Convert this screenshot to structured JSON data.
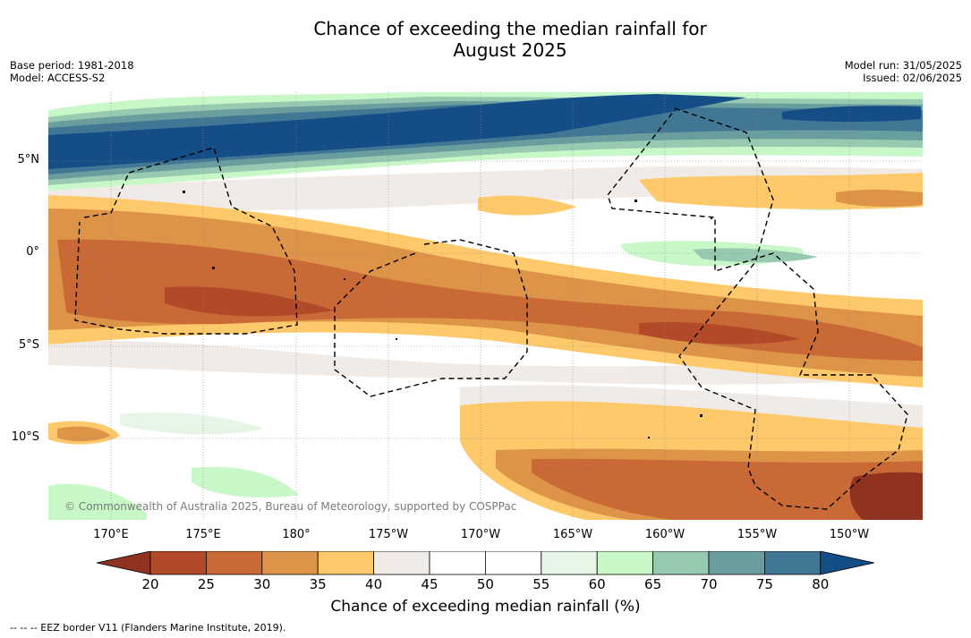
{
  "title": {
    "line1": "Chance of exceeding the median rainfall for",
    "line2": "August 2025"
  },
  "meta": {
    "base_period": "Base period: 1981-2018",
    "model": "Model: ACCESS-S2",
    "model_run": "Model run: 31/05/2025",
    "issued": "Issued: 02/06/2025"
  },
  "lat_labels": [
    "5°N",
    "0°",
    "5°S",
    "10°S"
  ],
  "lon_labels": [
    "170°E",
    "175°E",
    "180°",
    "175°W",
    "170°W",
    "165°W",
    "160°W",
    "155°W",
    "150°W"
  ],
  "copyright": "© Commonwealth of Australia 2025, Bureau of Meteorology, supported by COSPPac",
  "colorbar": {
    "title": "Chance of exceeding median rainfall (%)",
    "ticks": [
      "20",
      "25",
      "30",
      "35",
      "40",
      "45",
      "50",
      "55",
      "60",
      "65",
      "70",
      "75",
      "80"
    ],
    "colors": [
      "#8f3320",
      "#b24a2a",
      "#c96a36",
      "#de9448",
      "#fdc96b",
      "#f0ebe6",
      "#ffffff",
      "#ffffff",
      "#e6f5e6",
      "#c8f8c8",
      "#98c9b1",
      "#6a9e9e",
      "#417694",
      "#154d87"
    ]
  },
  "footnote": "--  --  -- EEZ border V11 (Flanders Marine Institute, 2019)."
}
